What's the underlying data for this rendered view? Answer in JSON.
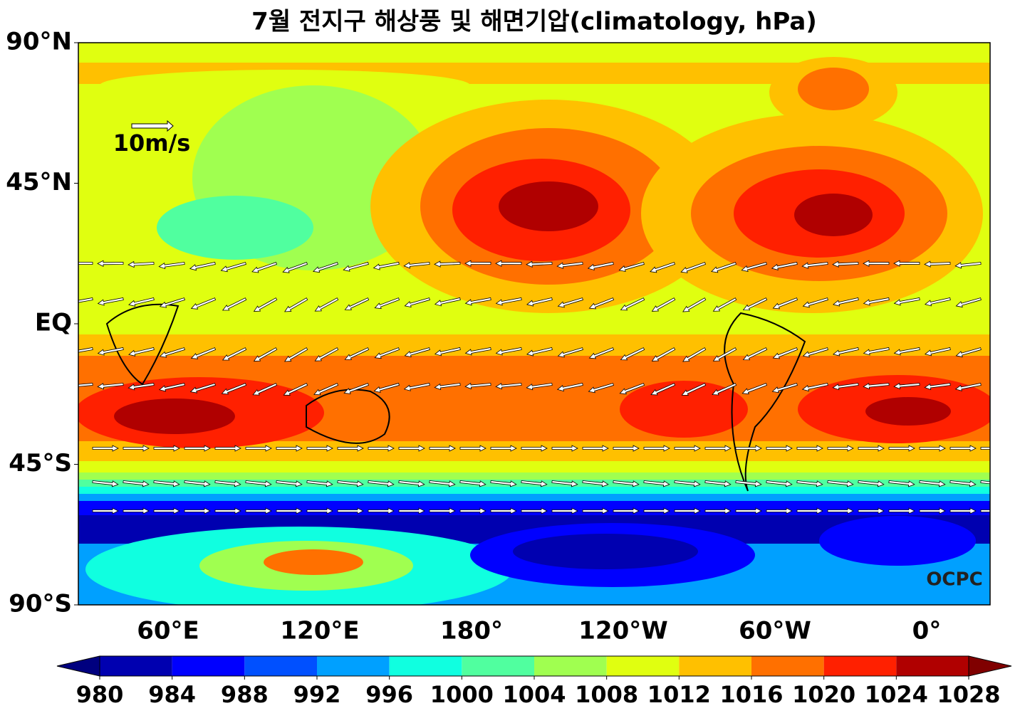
{
  "title": "7월 전지구 해상풍 및 해면기압(climatology, hPa)",
  "map": {
    "xticks": [
      "60°E",
      "120°E",
      "180°",
      "120°W",
      "60°W",
      "0°"
    ],
    "yticks": [
      "90°N",
      "45°N",
      "EQ",
      "45°S",
      "90°S"
    ],
    "wind_reference": "10m/s",
    "watermark": "OCPC"
  },
  "colorbar": {
    "levels": [
      980,
      984,
      988,
      992,
      996,
      1000,
      1004,
      1008,
      1012,
      1016,
      1020,
      1024,
      1028
    ],
    "colors": [
      "#0000b0",
      "#0000ff",
      "#0050ff",
      "#00a0ff",
      "#10ffe0",
      "#50ff9f",
      "#a0ff50",
      "#e0ff10",
      "#ffc000",
      "#ff7000",
      "#ff2000",
      "#b00000"
    ],
    "under_color": "#00007f",
    "over_color": "#800000"
  }
}
